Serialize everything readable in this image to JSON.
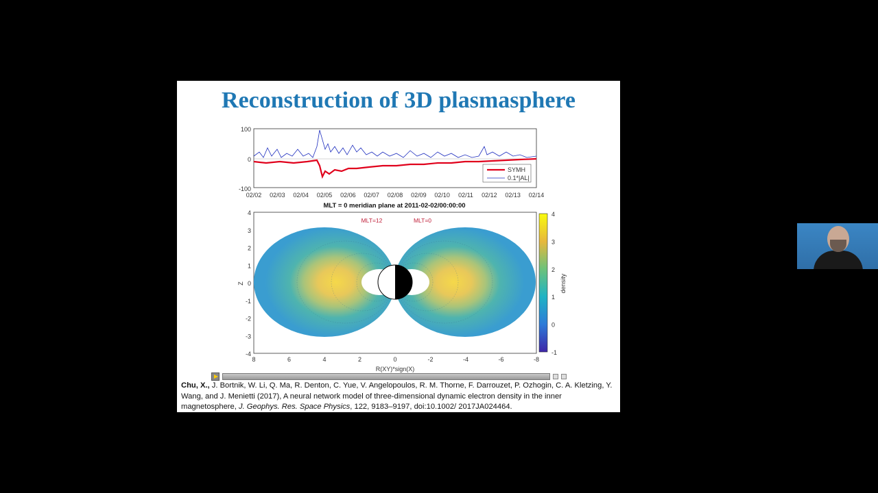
{
  "slide": {
    "title": "Reconstruction of 3D plasmasphere"
  },
  "top_plot": {
    "y_ticks": [
      "100",
      "0",
      "-100"
    ],
    "x_ticks": [
      "02/02",
      "02/03",
      "02/04",
      "02/05",
      "02/06",
      "02/07",
      "02/08",
      "02/09",
      "02/10",
      "02/11",
      "02/12",
      "02/13",
      "02/14"
    ],
    "legend": [
      "SYMH",
      "0.1*|AL|"
    ],
    "colors": {
      "symh": "#e0001b",
      "al": "#1f2fbf"
    }
  },
  "bottom_plot": {
    "title": "MLT = 0 meridian plane at 2011-02-02/00:00:00",
    "label_left": "MLT=12",
    "label_right": "MLT=0",
    "ylabel": "Z",
    "xlabel": "R(XY)*sign(X)",
    "y_ticks": [
      "4",
      "3",
      "2",
      "1",
      "0",
      "-1",
      "-2",
      "-3",
      "-4"
    ],
    "x_ticks": [
      "8",
      "6",
      "4",
      "2",
      "0",
      "-2",
      "-4",
      "-6",
      "-8"
    ],
    "colorbar_label": "density",
    "colorbar_ticks": [
      "4",
      "3",
      "2",
      "1",
      "0",
      "-1"
    ]
  },
  "chart_data": [
    {
      "type": "line",
      "x": [
        "02/02",
        "02/03",
        "02/04",
        "02/05",
        "02/06",
        "02/07",
        "02/08",
        "02/09",
        "02/10",
        "02/11",
        "02/12",
        "02/13",
        "02/14"
      ],
      "series": [
        {
          "name": "SYMH",
          "values": [
            -5,
            -10,
            -10,
            -50,
            -35,
            -28,
            -25,
            -20,
            -15,
            -10,
            -8,
            -5,
            -2
          ]
        },
        {
          "name": "0.1*|AL|",
          "values": [
            5,
            10,
            8,
            60,
            30,
            15,
            10,
            12,
            8,
            6,
            20,
            10,
            5
          ]
        }
      ],
      "ylim": [
        -100,
        100
      ]
    },
    {
      "type": "heatmap",
      "title": "MLT = 0 meridian plane at 2011-02-02/00:00:00",
      "xlabel": "R(XY)*sign(X)",
      "ylabel": "Z",
      "xlim": [
        8,
        -8
      ],
      "ylim": [
        -4,
        4
      ],
      "colorbar": {
        "label": "density",
        "range": [
          -1,
          4
        ]
      }
    }
  ],
  "player": {
    "play_icon": "play-icon"
  },
  "citation": {
    "authors_bold": "Chu, X.,",
    "authors_rest": " J. Bortnik, W. Li, Q. Ma, R. Denton, C. Yue, V. Angelopoulos, R. M. Thorne, F. Darrouzet, P. Ozhogin, C. A. Kletzing, Y. Wang, and J. Menietti (2017), A neural network model of three-dimensional dynamic electron density in the inner magnetosphere, ",
    "journal": "J. Geophys. Res. Space Physics",
    "tail": ", 122, 9183–9197, doi:10.1002/ 2017JA024464."
  }
}
